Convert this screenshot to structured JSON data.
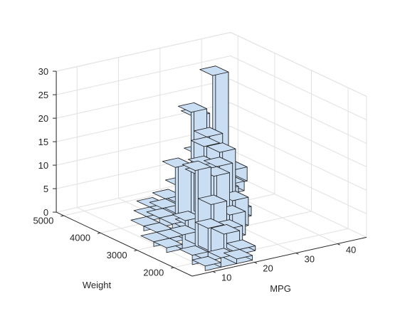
{
  "chart_data": {
    "type": "bar3d-histogram",
    "xlabel": "MPG",
    "ylabel": "Weight",
    "zlabel": "",
    "x_ticks": [
      "10",
      "20",
      "30",
      "40"
    ],
    "y_ticks": [
      "2000",
      "3000",
      "4000",
      "5000"
    ],
    "z_ticks": [
      "0",
      "5",
      "10",
      "15",
      "20",
      "25",
      "30"
    ],
    "xlim": [
      5,
      47
    ],
    "ylim": [
      1500,
      5200
    ],
    "zlim": [
      0,
      30
    ],
    "grid": true,
    "bar_color": "#c9ddf3",
    "bar_edge_color": "#1a1a1a",
    "x_bin_edges": [
      9,
      12.8,
      16.6,
      20.4,
      24.2,
      28,
      31.8,
      35.6,
      39.4,
      43.2,
      47
    ],
    "y_bin_edges": [
      1600,
      1950,
      2300,
      2650,
      3000,
      3350,
      3700,
      4050,
      4400,
      4750,
      5100
    ],
    "counts": [
      [
        0,
        0,
        0,
        0,
        0,
        0,
        0,
        0,
        3,
        3
      ],
      [
        0,
        0,
        0,
        1,
        2,
        4,
        10,
        26,
        2,
        0
      ],
      [
        0,
        0,
        1,
        2,
        6,
        20,
        11,
        0,
        0,
        0
      ],
      [
        0,
        1,
        2,
        12,
        23,
        17,
        5,
        0,
        0,
        0
      ],
      [
        0,
        1,
        2,
        1,
        17,
        15,
        2,
        0,
        0,
        0
      ],
      [
        1,
        1,
        4,
        15,
        14,
        6,
        0,
        0,
        0,
        0
      ],
      [
        1,
        3,
        15,
        14,
        5,
        0,
        0,
        0,
        0,
        0
      ],
      [
        0,
        18,
        10,
        4,
        0,
        0,
        0,
        0,
        0,
        0
      ],
      [
        2,
        7,
        5,
        1,
        0,
        0,
        0,
        0,
        0,
        0
      ],
      [
        1,
        2,
        1,
        0,
        0,
        0,
        0,
        0,
        0,
        0
      ]
    ]
  }
}
